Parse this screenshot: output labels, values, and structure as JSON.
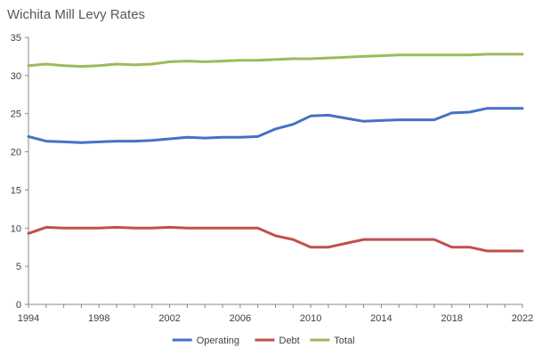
{
  "chart_data": {
    "type": "line",
    "title": "Wichita Mill Levy Rates",
    "xlabel": "",
    "ylabel": "",
    "x": [
      1994,
      1995,
      1996,
      1997,
      1998,
      1999,
      2000,
      2001,
      2002,
      2003,
      2004,
      2005,
      2006,
      2007,
      2008,
      2009,
      2010,
      2011,
      2012,
      2013,
      2014,
      2015,
      2016,
      2017,
      2018,
      2019,
      2020,
      2021,
      2022
    ],
    "xlim": [
      1994,
      2022
    ],
    "ylim": [
      0,
      35
    ],
    "x_ticks": [
      1994,
      1998,
      2002,
      2006,
      2010,
      2014,
      2018,
      2022
    ],
    "y_ticks": [
      0,
      5,
      10,
      15,
      20,
      25,
      30,
      35
    ],
    "grid": false,
    "legend_position": "bottom",
    "series": [
      {
        "name": "Operating",
        "color": "#4472C4",
        "values": [
          22.0,
          21.4,
          21.3,
          21.2,
          21.3,
          21.4,
          21.4,
          21.5,
          21.7,
          21.9,
          21.8,
          21.9,
          21.9,
          22.0,
          23.0,
          23.6,
          24.7,
          24.8,
          24.4,
          24.0,
          24.1,
          24.2,
          24.2,
          24.2,
          25.1,
          25.2,
          25.7,
          25.7,
          25.7
        ]
      },
      {
        "name": "Debt",
        "color": "#C0504D",
        "values": [
          9.3,
          10.1,
          10.0,
          10.0,
          10.0,
          10.1,
          10.0,
          10.0,
          10.1,
          10.0,
          10.0,
          10.0,
          10.0,
          10.0,
          9.0,
          8.5,
          7.5,
          7.5,
          8.0,
          8.5,
          8.5,
          8.5,
          8.5,
          8.5,
          7.5,
          7.5,
          7.0,
          7.0,
          7.0
        ]
      },
      {
        "name": "Total",
        "color": "#9BBB59",
        "values": [
          31.3,
          31.5,
          31.3,
          31.2,
          31.3,
          31.5,
          31.4,
          31.5,
          31.8,
          31.9,
          31.8,
          31.9,
          32.0,
          32.0,
          32.1,
          32.2,
          32.2,
          32.3,
          32.4,
          32.5,
          32.6,
          32.7,
          32.7,
          32.7,
          32.7,
          32.7,
          32.8,
          32.8,
          32.8
        ]
      }
    ]
  }
}
